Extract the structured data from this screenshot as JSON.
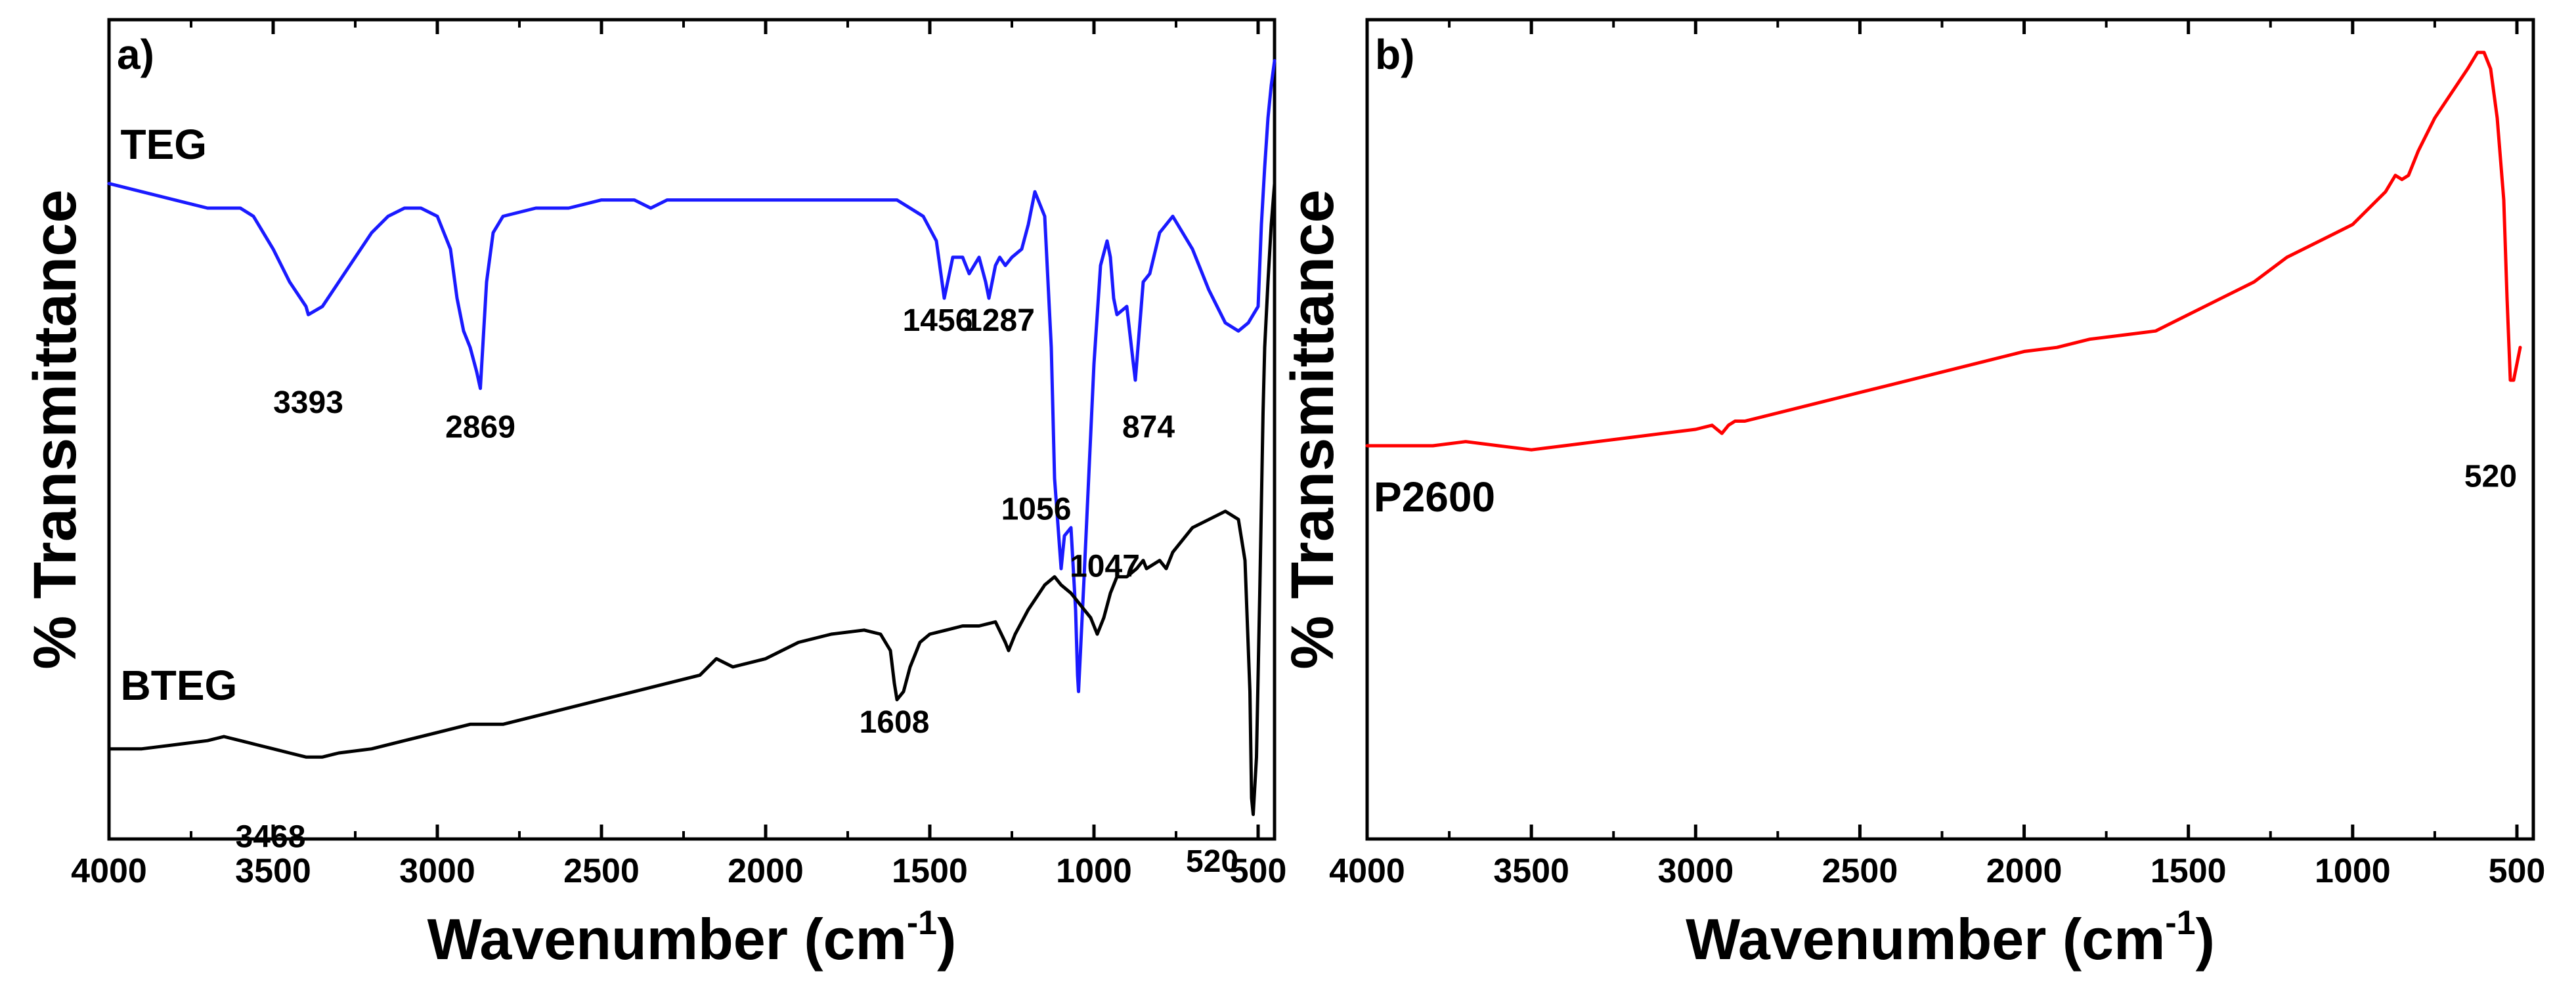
{
  "colors": {
    "TEG": "#1a1aff",
    "BTEG": "#000000",
    "P2600": "#ff0000"
  },
  "chart_data": [
    {
      "type": "line",
      "panel_label": "a)",
      "xlabel_main": "Wavenumber (cm",
      "xlabel_sup": "-1",
      "xlabel_close": ")",
      "ylabel": "% Transmittance",
      "xlim": [
        4000,
        450
      ],
      "ylim": [
        0,
        100
      ],
      "x_ticks": [
        4000,
        3500,
        3000,
        2500,
        2000,
        1500,
        1000,
        500
      ],
      "x_tick_labels": [
        "4000",
        "3500",
        "3000",
        "2500",
        "2000",
        "1500",
        "1000",
        "500"
      ],
      "series": [
        {
          "name": "TEG",
          "color_key": "TEG",
          "x": [
            4000,
            3900,
            3800,
            3700,
            3600,
            3560,
            3500,
            3450,
            3400,
            3393,
            3350,
            3300,
            3250,
            3200,
            3150,
            3100,
            3050,
            3000,
            2960,
            2940,
            2920,
            2900,
            2880,
            2869,
            2850,
            2830,
            2800,
            2700,
            2600,
            2500,
            2400,
            2350,
            2300,
            2200,
            2100,
            2000,
            1900,
            1800,
            1700,
            1600,
            1560,
            1520,
            1480,
            1456,
            1430,
            1400,
            1380,
            1350,
            1330,
            1320,
            1300,
            1287,
            1270,
            1250,
            1220,
            1200,
            1180,
            1150,
            1130,
            1120,
            1100,
            1090,
            1070,
            1056,
            1050,
            1047,
            1030,
            1000,
            980,
            960,
            950,
            940,
            930,
            900,
            880,
            874,
            860,
            850,
            830,
            800,
            760,
            700,
            650,
            600,
            560,
            530,
            500,
            490,
            480,
            470,
            460,
            450
          ],
          "y": [
            80,
            79,
            78,
            77,
            77,
            76,
            72,
            68,
            65,
            64,
            65,
            68,
            71,
            74,
            76,
            77,
            77,
            76,
            72,
            66,
            62,
            60,
            57,
            55,
            68,
            74,
            76,
            77,
            77,
            78,
            78,
            77,
            78,
            78,
            78,
            78,
            78,
            78,
            78,
            78,
            77,
            76,
            73,
            66,
            71,
            71,
            69,
            71,
            68,
            66,
            70,
            71,
            70,
            71,
            72,
            75,
            79,
            76,
            60,
            44,
            33,
            37,
            38,
            28,
            20,
            18,
            32,
            58,
            70,
            73,
            71,
            66,
            64,
            65,
            58,
            56,
            63,
            68,
            69,
            74,
            76,
            72,
            67,
            63,
            62,
            63,
            65,
            75,
            82,
            88,
            92,
            95
          ],
          "peaks": [
            {
              "label": "3393",
              "x": 3393,
              "y": 52
            },
            {
              "label": "2869",
              "x": 2869,
              "y": 49
            },
            {
              "label": "1456",
              "x": 1456,
              "y": 62
            },
            {
              "label": "1287",
              "x": 1287,
              "y": 62
            },
            {
              "label": "1056",
              "x": 1056,
              "y": 39
            },
            {
              "label": "1047",
              "x": 1047,
              "y": 32
            },
            {
              "label": "874",
              "x": 874,
              "y": 49
            }
          ]
        },
        {
          "name": "BTEG",
          "color_key": "BTEG",
          "x": [
            4000,
            3900,
            3800,
            3700,
            3650,
            3600,
            3550,
            3500,
            3450,
            3400,
            3350,
            3300,
            3200,
            3100,
            3000,
            2900,
            2800,
            2700,
            2600,
            2500,
            2400,
            2300,
            2200,
            2150,
            2100,
            2000,
            1900,
            1800,
            1700,
            1650,
            1620,
            1608,
            1600,
            1580,
            1560,
            1530,
            1500,
            1450,
            1400,
            1350,
            1300,
            1270,
            1260,
            1240,
            1200,
            1150,
            1120,
            1100,
            1070,
            1050,
            1030,
            1010,
            1000,
            990,
            970,
            950,
            930,
            900,
            870,
            850,
            840,
            800,
            780,
            760,
            740,
            700,
            650,
            600,
            560,
            540,
            525,
            520,
            515,
            505,
            495,
            485,
            480,
            470,
            460,
            450
          ],
          "y": [
            11,
            11,
            11.5,
            12,
            12.5,
            12,
            11.5,
            11,
            10.5,
            10,
            10,
            10.5,
            11,
            12,
            13,
            14,
            14,
            15,
            16,
            17,
            18,
            19,
            20,
            22,
            21,
            22,
            24,
            25,
            25.5,
            25,
            23,
            19,
            17,
            18,
            21,
            24,
            25,
            25.5,
            26,
            26,
            26.5,
            24,
            23,
            25,
            28,
            31,
            32,
            31,
            30,
            29,
            28,
            27,
            26,
            25,
            27,
            30,
            32,
            32,
            33,
            34,
            33,
            34,
            33,
            35,
            36,
            38,
            39,
            40,
            39,
            34,
            18,
            5,
            3,
            10,
            30,
            52,
            60,
            68,
            75,
            80
          ],
          "peaks": [
            {
              "label": "3468",
              "x": 3468,
              "y": -1
            },
            {
              "label": "1608",
              "x": 1608,
              "y": 13
            },
            {
              "label": "520",
              "x": 520,
              "y": -4
            }
          ]
        }
      ],
      "series_labels": [
        {
          "text": "TEG",
          "color_key": "BTEG",
          "x": 3965,
          "y": 83
        },
        {
          "text": "BTEG",
          "color_key": "BTEG",
          "x": 3965,
          "y": 17
        }
      ]
    },
    {
      "type": "line",
      "panel_label": "b)",
      "xlabel_main": "Wavenumber (cm",
      "xlabel_sup": "-1",
      "xlabel_close": ")",
      "ylabel": "% Transmittance",
      "xlim": [
        4000,
        450
      ],
      "ylim": [
        0,
        100
      ],
      "x_ticks": [
        4000,
        3500,
        3000,
        2500,
        2000,
        1500,
        1000,
        500
      ],
      "x_tick_labels": [
        "4000",
        "3500",
        "3000",
        "2500",
        "2000",
        "1500",
        "1000",
        "500"
      ],
      "series": [
        {
          "name": "P2600",
          "color_key": "P2600",
          "x": [
            4000,
            3900,
            3800,
            3700,
            3600,
            3500,
            3400,
            3300,
            3200,
            3100,
            3000,
            2950,
            2920,
            2900,
            2880,
            2850,
            2800,
            2700,
            2600,
            2500,
            2400,
            2300,
            2200,
            2100,
            2000,
            1900,
            1800,
            1700,
            1600,
            1500,
            1400,
            1300,
            1200,
            1100,
            1000,
            950,
            900,
            870,
            850,
            830,
            800,
            750,
            700,
            650,
            620,
            600,
            580,
            560,
            540,
            530,
            520,
            510,
            500,
            490
          ],
          "y": [
            48,
            48,
            48,
            48.5,
            48,
            47.5,
            48,
            48.5,
            49,
            49.5,
            50,
            50.5,
            49.5,
            50.5,
            51,
            51,
            51.5,
            52.5,
            53.5,
            54.5,
            55.5,
            56.5,
            57.5,
            58.5,
            59.5,
            60,
            61,
            61.5,
            62,
            64,
            66,
            68,
            71,
            73,
            75,
            77,
            79,
            81,
            80.5,
            81,
            84,
            88,
            91,
            94,
            96,
            96,
            94,
            88,
            78,
            66,
            56,
            56,
            58,
            60
          ],
          "peaks": [
            {
              "label": "520",
              "x": 520,
              "y": 43
            }
          ]
        }
      ],
      "series_labels": [
        {
          "text": "P2600",
          "color_key": "BTEG",
          "x": 3980,
          "y": 40
        }
      ]
    }
  ]
}
